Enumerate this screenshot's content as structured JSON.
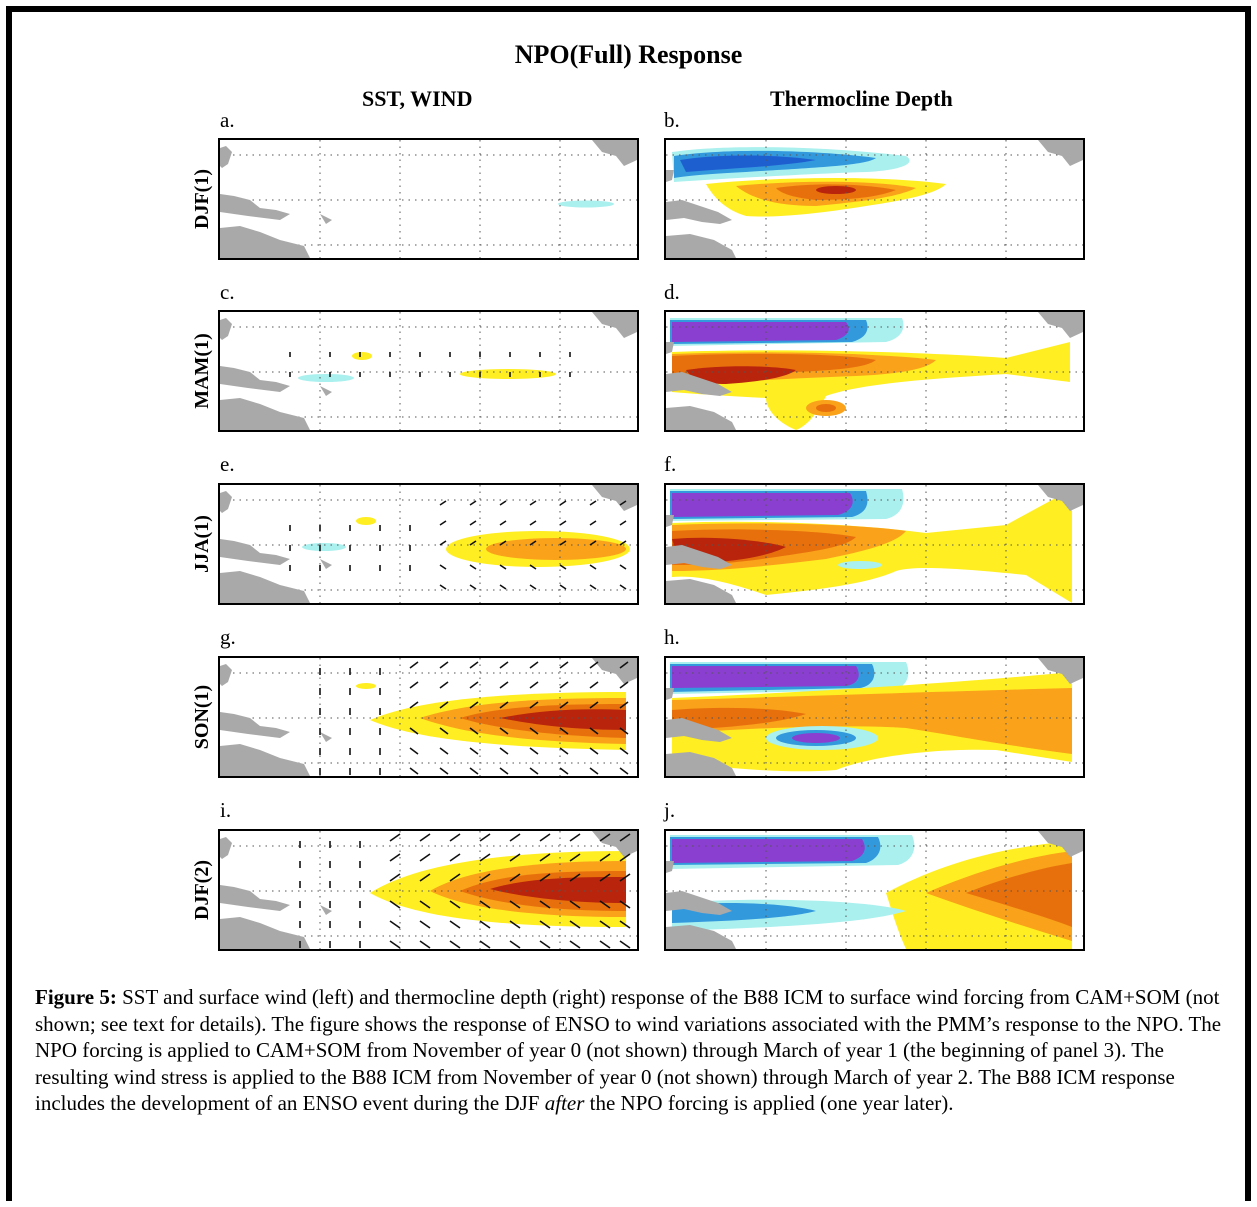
{
  "figure": {
    "title": "NPO(Full) Response",
    "left_column_title": "SST, WIND",
    "right_column_title": "Thermocline Depth",
    "rows": [
      {
        "label": "DJF(1)",
        "left_letter": "a.",
        "right_letter": "b."
      },
      {
        "label": "MAM(1)",
        "left_letter": "c.",
        "right_letter": "d."
      },
      {
        "label": "JJA(1)",
        "left_letter": "e.",
        "right_letter": "f."
      },
      {
        "label": "SON(1)",
        "left_letter": "g.",
        "right_letter": "h."
      },
      {
        "label": "DJF(2)",
        "left_letter": "i.",
        "right_letter": "j."
      }
    ],
    "colors": {
      "land": "#a9a9a9",
      "warm_light": "#ffee22",
      "warm_mid": "#f9a21a",
      "warm_strong": "#e8700c",
      "warm_max": "#b8250c",
      "cool_light": "#aaf0ee",
      "cool_mid": "#3399dd",
      "cool_strong": "#1e5fd0",
      "cool_max": "#8a3fd0"
    }
  },
  "caption": {
    "label": "Figure 5:",
    "part1": " SST and surface wind (left) and thermocline depth (right) response of the B88 ICM to surface wind forcing from CAM+SOM (not shown; see text for details).  The figure shows the response of ENSO to wind variations associated with the PMM’s response to the NPO.  The NPO forcing is applied to CAM+SOM from November of year 0 (not shown) through March of year 1 (the beginning of panel 3).  The resulting wind stress is applied to the B88 ICM from November of year 0 (not shown) through March of year 2.  The B88 ICM response includes the development of an ENSO event during the DJF ",
    "emphasis": "after",
    "part2": " the NPO forcing is applied (one year later)."
  }
}
